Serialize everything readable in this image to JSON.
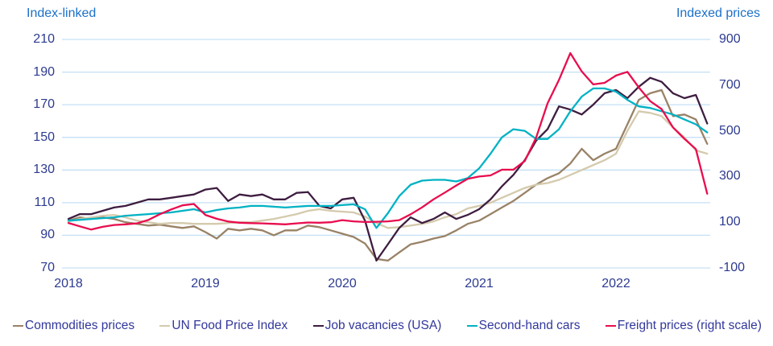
{
  "figure": {
    "left_axis_title": "Index-linked",
    "right_axis_title": "Indexed prices"
  },
  "colors": {
    "axis_title_blue": "#1c70c9",
    "tick_navy": "#2c3a90",
    "legend_navy": "#31379b",
    "gridline_blue": "#c5e0f5",
    "background": "#ffffff"
  },
  "chart_data": {
    "type": "line",
    "title": "",
    "x_unit": "month",
    "x_start": "2018-01",
    "x_end": "2022-09",
    "x_tick_labels": [
      "2018",
      "2019",
      "2020",
      "2021",
      "2022"
    ],
    "grid": "horizontal",
    "legend_position": "bottom",
    "left_axis": {
      "title": "Index-linked",
      "range": [
        70,
        210
      ],
      "ticks": [
        210,
        190,
        170,
        150,
        130,
        110,
        90,
        70
      ]
    },
    "right_axis": {
      "title": "Indexed prices",
      "range": [
        -100,
        900
      ],
      "ticks": [
        900,
        700,
        500,
        300,
        100,
        -100
      ]
    },
    "series": [
      {
        "name": "Commodities prices",
        "axis": "left",
        "color": "#998266",
        "values": [
          99,
          101,
          100,
          101,
          100,
          98,
          97,
          96,
          96.5,
          95.5,
          94.5,
          95.5,
          92,
          88,
          94,
          93,
          94,
          93,
          90,
          93,
          93,
          96,
          95,
          93,
          91,
          89,
          85,
          75.5,
          74.5,
          79.5,
          84.5,
          86,
          88,
          89.5,
          93,
          97,
          99,
          103,
          107,
          111,
          116,
          121,
          125,
          128,
          134,
          143,
          136,
          140,
          143,
          158,
          173,
          177,
          179,
          163,
          164,
          161,
          146
        ]
      },
      {
        "name": "UN Food Price Index",
        "axis": "left",
        "color": "#d4caad",
        "values": [
          98.5,
          100,
          101,
          102,
          102.5,
          101,
          99,
          98,
          97,
          97.5,
          97.5,
          97,
          97,
          97,
          97.5,
          98,
          98,
          99,
          100,
          101.5,
          103,
          105,
          106,
          105,
          104.5,
          104,
          101.5,
          97.5,
          94.5,
          95,
          96,
          97,
          98.5,
          101,
          103,
          106.5,
          108,
          110,
          113,
          116,
          119,
          121,
          122,
          124,
          127,
          130,
          133,
          136,
          140,
          154,
          166,
          165,
          163,
          156,
          150,
          142,
          140
        ]
      },
      {
        "name": "Job vacancies (USA)",
        "axis": "left",
        "color": "#3e1d40",
        "values": [
          100,
          103,
          103,
          105,
          107,
          108,
          110,
          112,
          112,
          113,
          114,
          115,
          118,
          119,
          111,
          115,
          114,
          115,
          112,
          112,
          116,
          116.5,
          108,
          106.5,
          112,
          113,
          99,
          74.5,
          84.5,
          94.5,
          101,
          97.5,
          100,
          104,
          100,
          102.5,
          106,
          112,
          120,
          127,
          136,
          148,
          155,
          169,
          167,
          164,
          170,
          177,
          179,
          174,
          181,
          186.5,
          184,
          177,
          174,
          176,
          158.5
        ]
      },
      {
        "name": "Second-hand cars",
        "axis": "left",
        "color": "#00b2c4",
        "values": [
          99,
          99.5,
          100,
          100.5,
          101,
          102,
          102.5,
          103,
          103.5,
          104,
          105,
          106,
          104,
          105.5,
          106.5,
          107,
          108,
          108,
          107.5,
          107,
          107.5,
          108,
          108,
          108,
          108.5,
          109,
          106,
          94.5,
          103.5,
          114,
          121,
          123.5,
          124,
          124,
          123,
          125,
          131,
          140,
          150,
          155,
          154,
          149,
          149,
          155,
          166,
          175,
          180,
          180,
          178,
          173,
          169,
          168,
          166,
          164,
          161,
          158,
          153
        ]
      },
      {
        "name": "Freight prices (right scale)",
        "axis": "right",
        "color": "#e80d4e",
        "values": [
          97,
          82,
          68,
          80,
          88,
          91,
          95,
          110,
          135,
          156,
          174,
          180,
          132,
          115,
          103,
          98,
          96,
          95,
          93,
          91,
          95,
          99,
          98,
          100,
          109,
          104,
          101,
          102,
          104,
          109,
          135,
          165,
          200,
          230,
          261,
          290,
          300,
          305,
          330,
          330,
          368,
          470,
          620,
          723,
          840,
          760,
          703,
          710,
          742,
          758,
          690,
          630,
          595,
          515,
          465,
          420,
          225
        ]
      }
    ]
  },
  "legend": {
    "items": [
      "Commodities prices",
      "UN Food Price Index",
      "Job vacancies (USA)",
      "Second-hand cars",
      "Freight prices (right scale)"
    ]
  }
}
